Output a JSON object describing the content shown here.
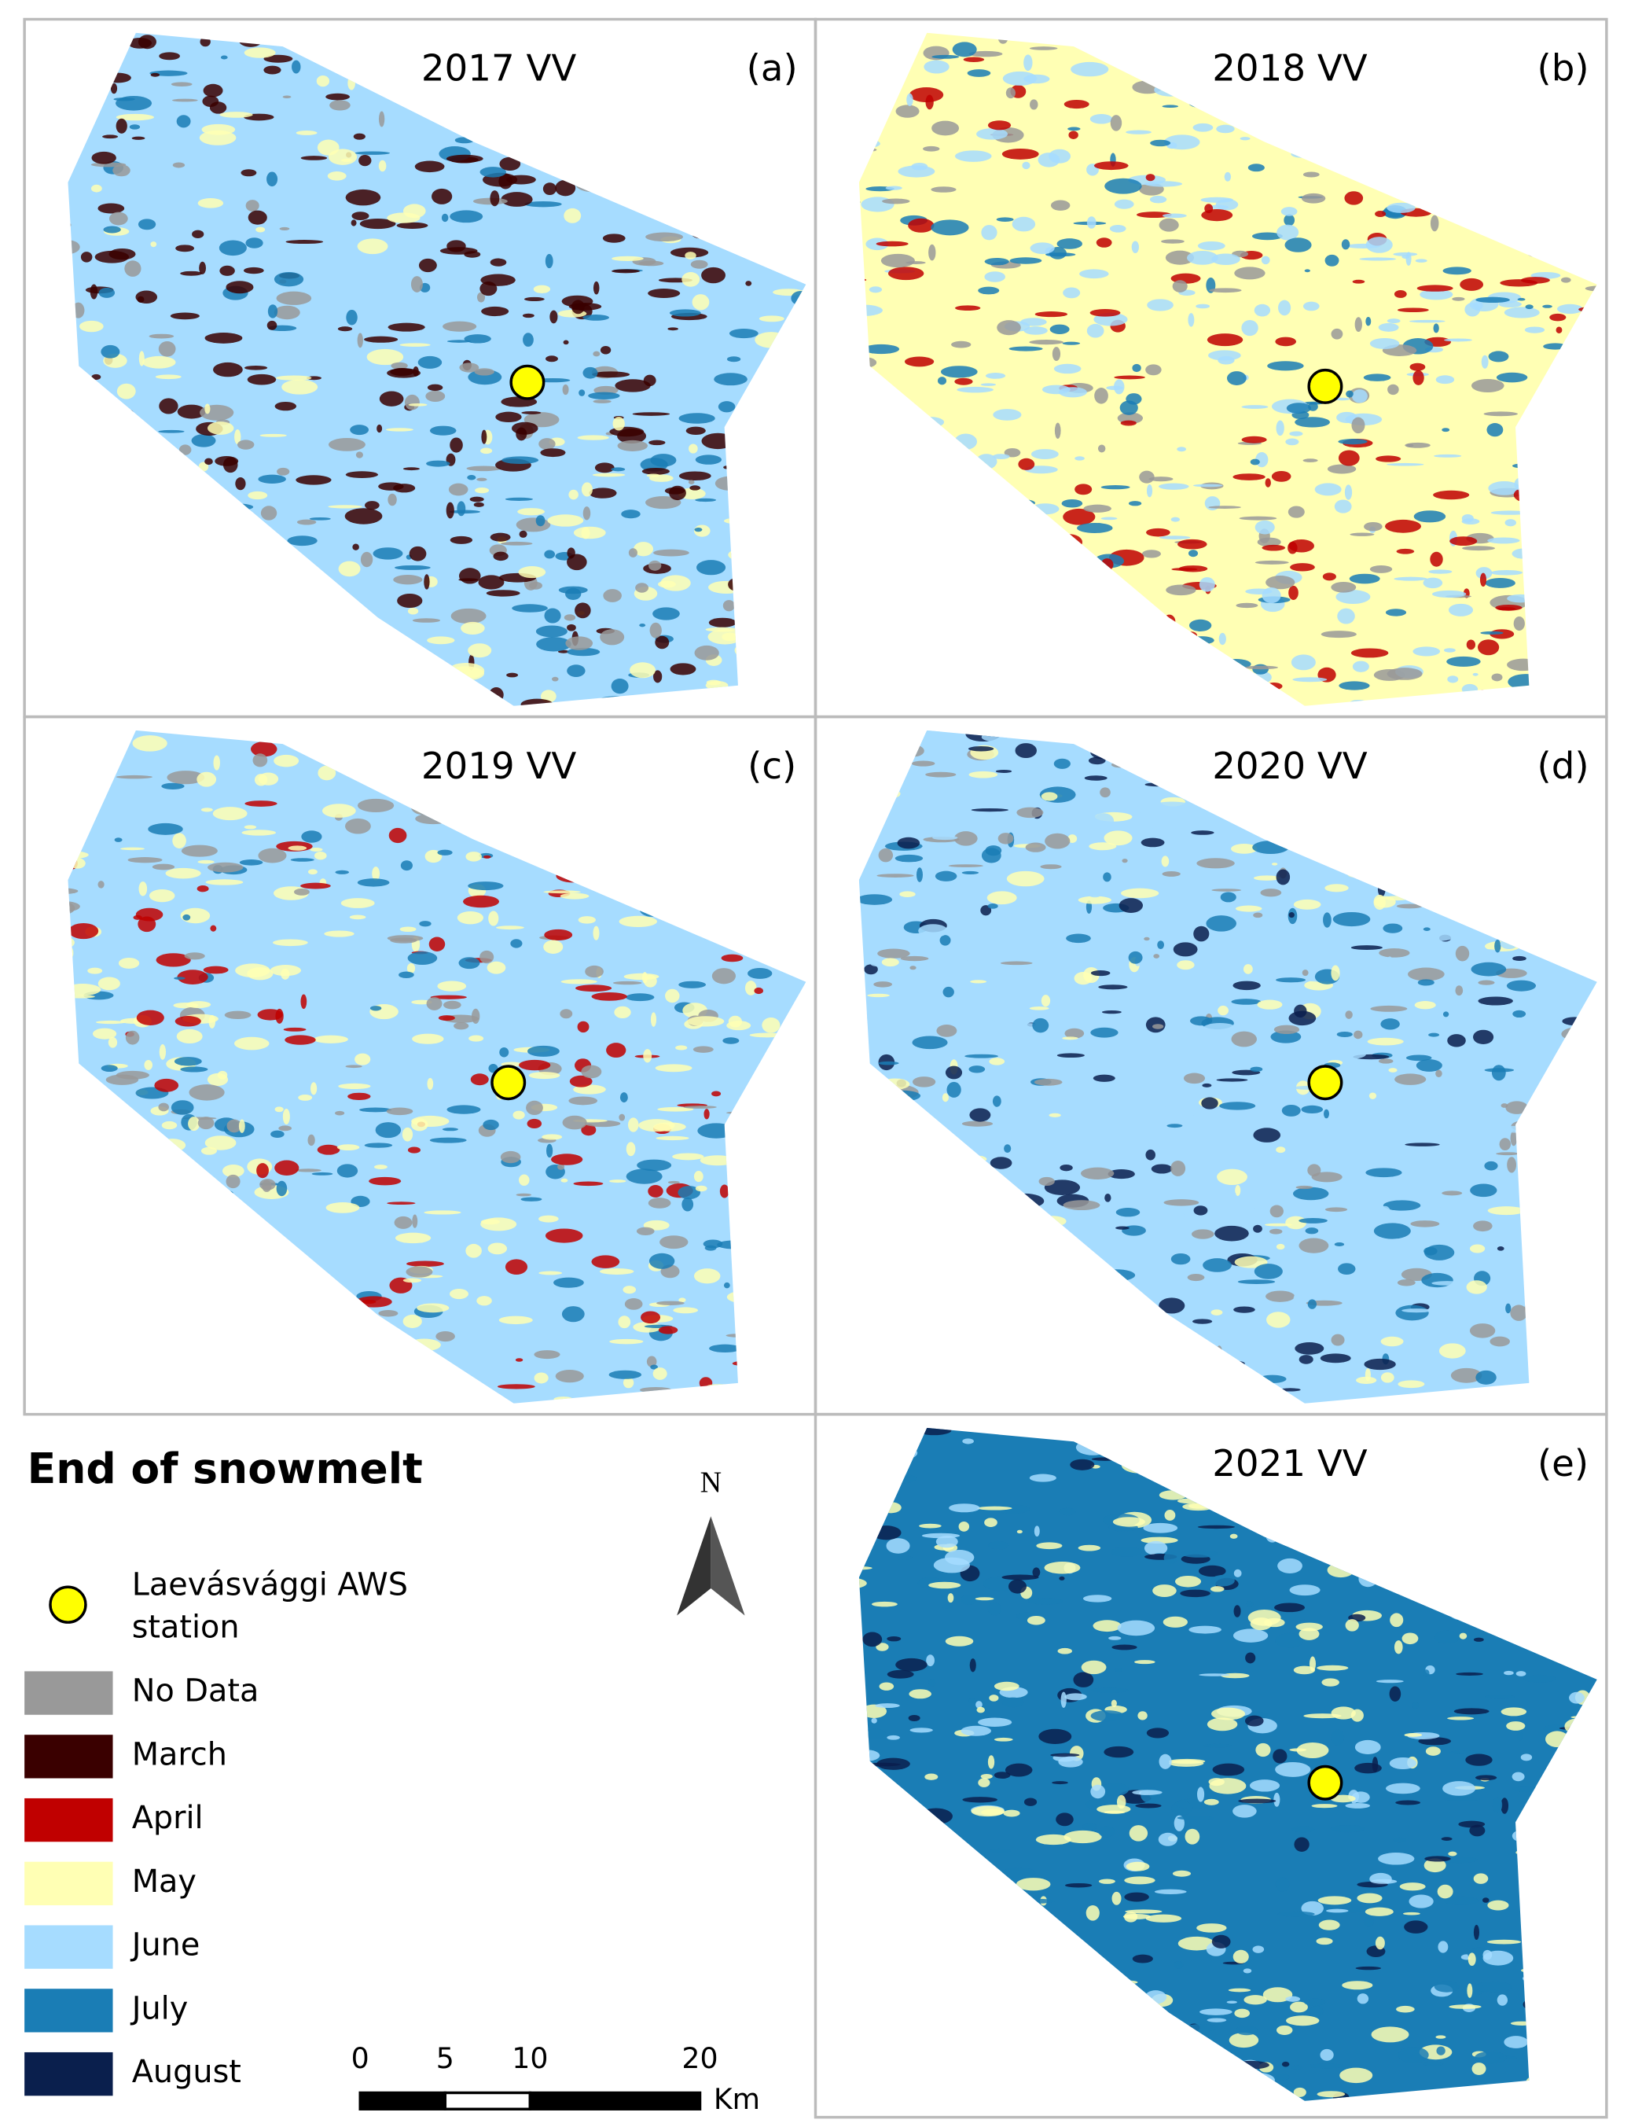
{
  "panels": [
    {
      "title": "2017 VV",
      "letter": "(a)",
      "base": "#a6dcff",
      "mix": [
        "#3a0000",
        "#3a0000",
        "#1a7db5",
        "#999999",
        "#ffffb4"
      ]
    },
    {
      "title": "2018 VV",
      "letter": "(b)",
      "base": "#ffffb4",
      "mix": [
        "#a6dcff",
        "#1a7db5",
        "#999999",
        "#c00000",
        "#a6dcff"
      ]
    },
    {
      "title": "2019 VV",
      "letter": "(c)",
      "base": "#a6dcff",
      "mix": [
        "#ffffb4",
        "#1a7db5",
        "#999999",
        "#c00000",
        "#ffffb4"
      ]
    },
    {
      "title": "2020 VV",
      "letter": "(d)",
      "base": "#a6dcff",
      "mix": [
        "#999999",
        "#1a7db5",
        "#ffffb4",
        "#0a1f4d",
        "#a6dcff"
      ]
    },
    {
      "title": "2021 VV",
      "letter": "(e)",
      "base": "#1a7db5",
      "mix": [
        "#ffffb4",
        "#a6dcff",
        "#ffffb4",
        "#0a1f4d",
        "#1a7db5"
      ]
    }
  ],
  "legend": {
    "title": "End of snowmelt",
    "station_label": [
      "Laevásvággi AWS",
      "station"
    ],
    "entries": [
      {
        "label": "No Data",
        "color": "#999999"
      },
      {
        "label": "March",
        "color": "#3a0000"
      },
      {
        "label": "April",
        "color": "#c00000"
      },
      {
        "label": "May",
        "color": "#ffffb4"
      },
      {
        "label": "June",
        "color": "#a6dcff"
      },
      {
        "label": "July",
        "color": "#1a7db5"
      },
      {
        "label": "August",
        "color": "#0a1f4d"
      }
    ]
  },
  "north": "N",
  "scale_bar": {
    "ticks": [
      0,
      5,
      10,
      20
    ],
    "unit": "Km"
  }
}
